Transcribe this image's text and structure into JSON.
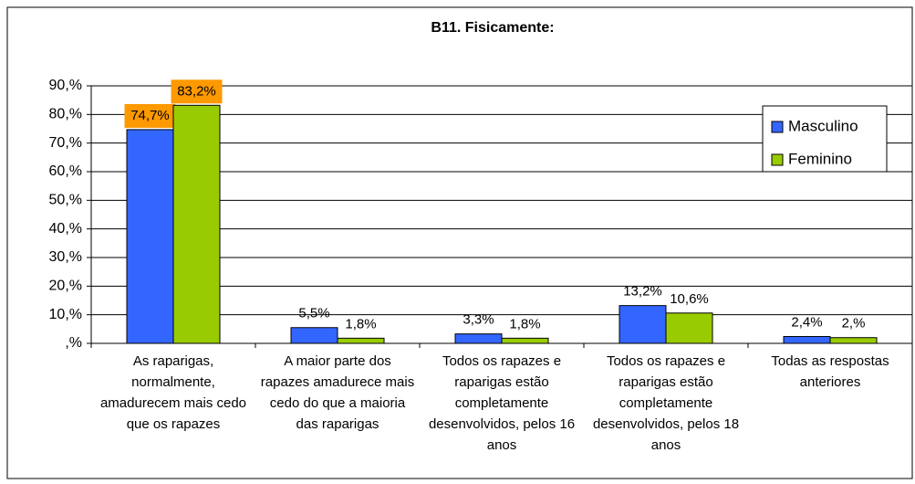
{
  "chart_data": {
    "type": "bar",
    "title": "B11. Fisicamente:",
    "categories": [
      "As raparigas, normalmente, amadurecem mais cedo que os rapazes",
      "A maior parte dos rapazes amadurece mais cedo do que a maioria das raparigas",
      "Todos os rapazes e raparigas estão completamente desenvolvidos, pelos 16 anos",
      "Todos os rapazes e raparigas estão completamente desenvolvidos, pelos 18 anos",
      "Todas as respostas anteriores"
    ],
    "series": [
      {
        "name": "Masculino",
        "color": "#3366ff",
        "values": [
          74.7,
          5.5,
          3.3,
          13.2,
          2.4
        ],
        "value_labels": [
          "74,7%",
          "5,5%",
          "3,3%",
          "13,2%",
          "2,4%"
        ]
      },
      {
        "name": "Feminino",
        "color": "#99cc00",
        "values": [
          83.2,
          1.8,
          1.8,
          10.6,
          2.0
        ],
        "value_labels": [
          "83,2%",
          "1,8%",
          "1,8%",
          "10,6%",
          "2,%"
        ]
      }
    ],
    "ylim": [
      0,
      90
    ],
    "yticks": [
      {
        "value": 0,
        "label": ",%"
      },
      {
        "value": 10,
        "label": "10,%"
      },
      {
        "value": 20,
        "label": "20,%"
      },
      {
        "value": 30,
        "label": "30,%"
      },
      {
        "value": 40,
        "label": "40,%"
      },
      {
        "value": 50,
        "label": "50,%"
      },
      {
        "value": 60,
        "label": "60,%"
      },
      {
        "value": 70,
        "label": "70,%"
      },
      {
        "value": 80,
        "label": "80,%"
      },
      {
        "value": 90,
        "label": "90,%"
      }
    ],
    "grid": true,
    "legend": "top-right"
  }
}
